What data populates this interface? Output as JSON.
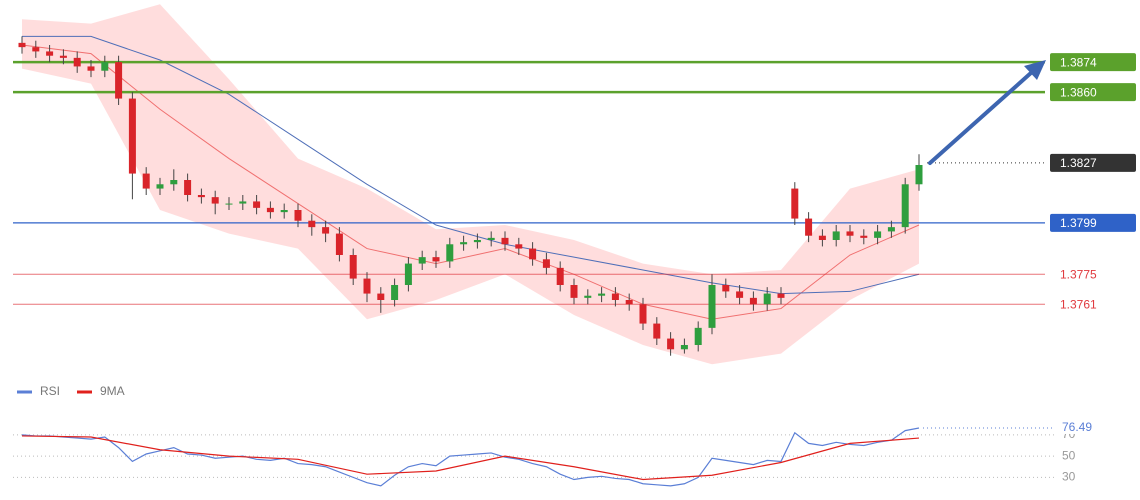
{
  "chart_data": [
    {
      "type": "candlestick",
      "ylim": [
        1.3728,
        1.3903
      ],
      "up_color": "#2e9e3e",
      "down_color": "#d9242a",
      "wick_color": "#444444",
      "open": [
        1.3883,
        1.3881,
        1.3879,
        1.3877,
        1.3876,
        1.3872,
        1.387,
        1.3874,
        1.3857,
        1.3822,
        1.3815,
        1.3817,
        1.3819,
        1.3812,
        1.3811,
        1.3808,
        1.3808,
        1.3809,
        1.3806,
        1.3804,
        1.3805,
        1.38,
        1.3797,
        1.3794,
        1.3784,
        1.3773,
        1.3766,
        1.3763,
        1.377,
        1.378,
        1.3783,
        1.3781,
        1.3789,
        1.379,
        1.3791,
        1.3792,
        1.3789,
        1.3787,
        1.3782,
        1.3778,
        1.377,
        1.3764,
        1.3765,
        1.3766,
        1.3763,
        1.3761,
        1.3752,
        1.3745,
        1.374,
        1.3742,
        1.375,
        1.377,
        1.3767,
        1.3764,
        1.3761,
        1.3766,
        1.3815,
        1.3801,
        1.3793,
        1.3791,
        1.3795,
        1.3793,
        1.3792,
        1.3795,
        1.3797,
        1.3817
      ],
      "high": [
        1.3886,
        1.3884,
        1.3882,
        1.388,
        1.3879,
        1.3875,
        1.3877,
        1.3877,
        1.386,
        1.3825,
        1.382,
        1.3824,
        1.3822,
        1.3815,
        1.3814,
        1.3811,
        1.3812,
        1.3812,
        1.3809,
        1.3808,
        1.3808,
        1.3803,
        1.38,
        1.3797,
        1.3787,
        1.3776,
        1.3769,
        1.3773,
        1.3783,
        1.3786,
        1.3786,
        1.3792,
        1.3793,
        1.3794,
        1.3795,
        1.3795,
        1.3792,
        1.379,
        1.3785,
        1.3781,
        1.3773,
        1.3768,
        1.3769,
        1.3769,
        1.3766,
        1.3764,
        1.3755,
        1.3748,
        1.3745,
        1.3753,
        1.3775,
        1.3773,
        1.377,
        1.3767,
        1.3769,
        1.3769,
        1.3818,
        1.3804,
        1.3796,
        1.3798,
        1.3798,
        1.3796,
        1.3798,
        1.38,
        1.382,
        1.3831
      ],
      "low": [
        1.3878,
        1.3876,
        1.3874,
        1.3873,
        1.3869,
        1.3867,
        1.3867,
        1.3854,
        1.381,
        1.3812,
        1.3812,
        1.3814,
        1.3809,
        1.3808,
        1.3803,
        1.3805,
        1.3805,
        1.3803,
        1.3801,
        1.3801,
        1.3797,
        1.3793,
        1.379,
        1.3781,
        1.377,
        1.3762,
        1.3757,
        1.376,
        1.3767,
        1.3777,
        1.3778,
        1.3778,
        1.3786,
        1.3787,
        1.3788,
        1.3786,
        1.3784,
        1.3779,
        1.3775,
        1.3767,
        1.3761,
        1.3761,
        1.3762,
        1.376,
        1.3758,
        1.3749,
        1.3742,
        1.3737,
        1.3738,
        1.3739,
        1.3747,
        1.3764,
        1.3761,
        1.3758,
        1.3758,
        1.3761,
        1.3798,
        1.379,
        1.3788,
        1.3788,
        1.379,
        1.3789,
        1.3789,
        1.3792,
        1.3794,
        1.3814
      ],
      "close": [
        1.3881,
        1.3879,
        1.3877,
        1.3876,
        1.3872,
        1.387,
        1.3874,
        1.3857,
        1.3822,
        1.3815,
        1.3817,
        1.3819,
        1.3812,
        1.3811,
        1.3808,
        1.3808,
        1.3809,
        1.3806,
        1.3804,
        1.3805,
        1.38,
        1.3797,
        1.3794,
        1.3784,
        1.3773,
        1.3766,
        1.3763,
        1.377,
        1.378,
        1.3783,
        1.3781,
        1.3789,
        1.379,
        1.3791,
        1.3792,
        1.3789,
        1.3787,
        1.3782,
        1.3778,
        1.377,
        1.3764,
        1.3765,
        1.3766,
        1.3763,
        1.3761,
        1.3752,
        1.3745,
        1.374,
        1.3742,
        1.375,
        1.377,
        1.3767,
        1.3764,
        1.3761,
        1.3766,
        1.3764,
        1.3801,
        1.3793,
        1.3791,
        1.3795,
        1.3793,
        1.3792,
        1.3795,
        1.3797,
        1.3817,
        1.3826
      ],
      "overlay_x": [
        0,
        5,
        10,
        15,
        20,
        25,
        30,
        35,
        40,
        45,
        50,
        55,
        60,
        65
      ],
      "ma": {
        "color": "#4f6fb8",
        "values": [
          1.3886,
          1.3886,
          1.3875,
          1.3859,
          1.3838,
          1.3817,
          1.3798,
          1.3789,
          1.3783,
          1.3777,
          1.3771,
          1.3766,
          1.3767,
          1.3775
        ]
      },
      "band": {
        "color": "#ffb3b3",
        "mid_color": "#f07070",
        "upper": [
          1.3894,
          1.3892,
          1.3901,
          1.3866,
          1.3829,
          1.3815,
          1.3796,
          1.3798,
          1.3791,
          1.378,
          1.3775,
          1.3777,
          1.3815,
          1.3824
        ],
        "lower": [
          1.3871,
          1.3864,
          1.3805,
          1.3794,
          1.3787,
          1.3754,
          1.3763,
          1.3775,
          1.3756,
          1.3742,
          1.3733,
          1.3738,
          1.3763,
          1.378
        ],
        "mid": [
          1.3882,
          1.3878,
          1.3852,
          1.3829,
          1.3808,
          1.3787,
          1.378,
          1.3787,
          1.3775,
          1.3761,
          1.3754,
          1.3759,
          1.3784,
          1.3798
        ]
      },
      "levels": [
        {
          "value": 1.3874,
          "color": "#5ba12c",
          "label_style": "box",
          "line": "solid"
        },
        {
          "value": 1.386,
          "label": "1.3860",
          "color": "#5ba12c",
          "label_style": "box",
          "line": "solid"
        },
        {
          "value": 1.3827,
          "color": "#333333",
          "label_style": "box",
          "line": "dotted"
        },
        {
          "value": 1.3799,
          "color": "#2f62c8",
          "label_style": "box",
          "line": "solid"
        },
        {
          "value": 1.3775,
          "color": "#e0393e",
          "label_style": "text",
          "line": "thin"
        },
        {
          "value": 1.3761,
          "color": "#e0393e",
          "label_style": "text",
          "line": "thin"
        }
      ]
    },
    {
      "type": "line",
      "ylim": [
        20,
        100
      ],
      "yticks": [
        30,
        50,
        70
      ],
      "grid": true,
      "series": [
        {
          "name": "RSI",
          "color": "#5b7fd6",
          "values": [
            70,
            69,
            69,
            68,
            67,
            66,
            68,
            58,
            45,
            52,
            55,
            58,
            52,
            51,
            48,
            49,
            50,
            47,
            46,
            48,
            43,
            42,
            40,
            35,
            30,
            25,
            22,
            32,
            40,
            43,
            41,
            50,
            51,
            52,
            53,
            49,
            47,
            43,
            40,
            33,
            28,
            30,
            31,
            29,
            28,
            24,
            23,
            22,
            24,
            30,
            48,
            46,
            44,
            42,
            46,
            45,
            72,
            62,
            60,
            63,
            61,
            60,
            63,
            65,
            74,
            76.49
          ]
        },
        {
          "name": "9MA",
          "color": "#e0201c",
          "x": [
            0,
            5,
            10,
            15,
            20,
            25,
            30,
            35,
            40,
            45,
            50,
            55,
            60,
            65
          ],
          "values": [
            69,
            68,
            56,
            50,
            47,
            33,
            36,
            50,
            40,
            28,
            32,
            44,
            62,
            67
          ]
        }
      ]
    }
  ]
}
